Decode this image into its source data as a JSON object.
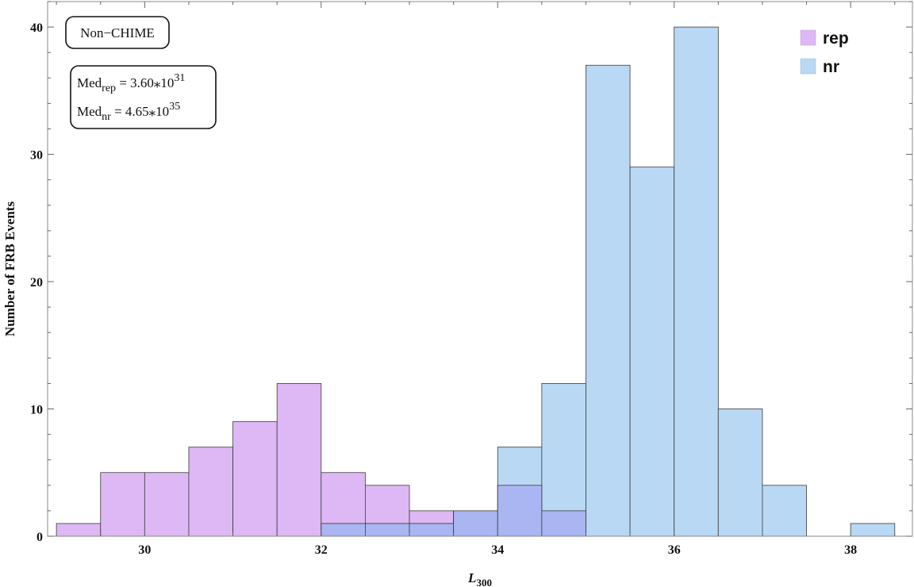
{
  "chart_data": {
    "type": "bar",
    "histogram": true,
    "xlabel_main": "L",
    "xlabel_sub": "300",
    "ylabel": "Number of FRB Events",
    "xlim": [
      28.9,
      38.7
    ],
    "ylim": [
      0,
      42
    ],
    "x_ticks": [
      30,
      32,
      34,
      36,
      38
    ],
    "y_ticks": [
      0,
      10,
      20,
      30,
      40
    ],
    "bin_width": 0.5,
    "series": [
      {
        "name": "rep",
        "color": "#DDB8F4",
        "bins": [
          {
            "x0": 29.0,
            "count": 1
          },
          {
            "x0": 29.5,
            "count": 5
          },
          {
            "x0": 30.0,
            "count": 5
          },
          {
            "x0": 30.5,
            "count": 7
          },
          {
            "x0": 31.0,
            "count": 9
          },
          {
            "x0": 31.5,
            "count": 12
          },
          {
            "x0": 32.0,
            "count": 5
          },
          {
            "x0": 32.5,
            "count": 4
          },
          {
            "x0": 33.0,
            "count": 2
          },
          {
            "x0": 33.5,
            "count": 2
          },
          {
            "x0": 34.0,
            "count": 4
          },
          {
            "x0": 34.5,
            "count": 2
          }
        ]
      },
      {
        "name": "nr",
        "color": "#B8D8F4",
        "bins": [
          {
            "x0": 32.0,
            "count": 1
          },
          {
            "x0": 32.5,
            "count": 1
          },
          {
            "x0": 33.0,
            "count": 1
          },
          {
            "x0": 33.5,
            "count": 2
          },
          {
            "x0": 34.0,
            "count": 7
          },
          {
            "x0": 34.5,
            "count": 12
          },
          {
            "x0": 35.0,
            "count": 37
          },
          {
            "x0": 35.5,
            "count": 29
          },
          {
            "x0": 36.0,
            "count": 40
          },
          {
            "x0": 36.5,
            "count": 10
          },
          {
            "x0": 37.0,
            "count": 4
          },
          {
            "x0": 38.0,
            "count": 1
          }
        ]
      }
    ],
    "overlap_color": "#A9B6F2",
    "legend_position": "top-right",
    "annotations": {
      "label": "Non−CHIME",
      "med_rep": {
        "prefix": "Med",
        "sub": "rep",
        "value": " = 3.60⁎10",
        "exp": "31"
      },
      "med_nr": {
        "prefix": "Med",
        "sub": "nr",
        "value": " = 4.65⁎10",
        "exp": "35"
      }
    }
  }
}
